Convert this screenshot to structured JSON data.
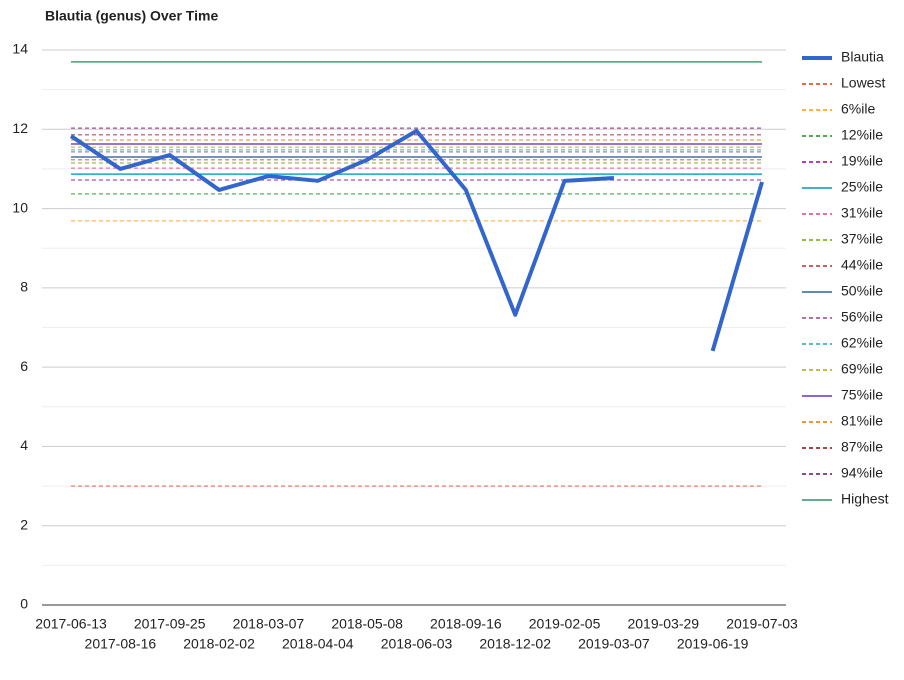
{
  "chart_data": {
    "type": "line",
    "title": "Blautia (genus) Over Time",
    "categories": [
      "2017-06-13",
      "2017-08-16",
      "2017-09-25",
      "2018-02-02",
      "2018-03-07",
      "2018-04-04",
      "2018-05-08",
      "2018-06-03",
      "2018-09-16",
      "2018-12-02",
      "2019-02-05",
      "2019-03-07",
      "2019-03-29",
      "2019-06-19",
      "2019-07-03"
    ],
    "series": [
      {
        "name": "Blautia",
        "color": "#3366cc",
        "values": [
          11.83,
          11.0,
          11.35,
          10.47,
          10.82,
          10.7,
          11.23,
          11.96,
          10.47,
          7.32,
          10.7,
          10.77,
          null,
          6.41,
          10.67
        ]
      }
    ],
    "reference_lines": [
      {
        "name": "Lowest",
        "color": "#dc3912",
        "value": 3.0,
        "dashed": true
      },
      {
        "name": "6%ile",
        "color": "#ff9900",
        "value": 9.69,
        "dashed": true
      },
      {
        "name": "12%ile",
        "color": "#109618",
        "value": 10.37,
        "dashed": true
      },
      {
        "name": "19%ile",
        "color": "#990099",
        "value": 10.72,
        "dashed": true
      },
      {
        "name": "25%ile",
        "color": "#0099c6",
        "value": 10.87,
        "dashed": false
      },
      {
        "name": "31%ile",
        "color": "#dd4477",
        "value": 11.02,
        "dashed": true
      },
      {
        "name": "37%ile",
        "color": "#66aa00",
        "value": 11.15,
        "dashed": true
      },
      {
        "name": "44%ile",
        "color": "#b82e2e",
        "value": 11.23,
        "dashed": true
      },
      {
        "name": "50%ile",
        "color": "#316395",
        "value": 11.3,
        "dashed": false
      },
      {
        "name": "56%ile",
        "color": "#994499",
        "value": 11.43,
        "dashed": true
      },
      {
        "name": "62%ile",
        "color": "#22aa99",
        "value": 11.48,
        "dashed": true
      },
      {
        "name": "69%ile",
        "color": "#aaaa11",
        "value": 11.55,
        "dashed": true
      },
      {
        "name": "75%ile",
        "color": "#6633cc",
        "value": 11.63,
        "dashed": false
      },
      {
        "name": "81%ile",
        "color": "#e67300",
        "value": 11.73,
        "dashed": true
      },
      {
        "name": "87%ile",
        "color": "#8b0707",
        "value": 11.86,
        "dashed": true
      },
      {
        "name": "94%ile",
        "color": "#651067",
        "value": 12.03,
        "dashed": true
      },
      {
        "name": "Highest",
        "color": "#329262",
        "value": 13.7,
        "dashed": false
      }
    ],
    "ylim": [
      0,
      14
    ],
    "yticks": [
      0,
      2,
      4,
      6,
      8,
      10,
      12,
      14
    ],
    "minor_yticks": [
      1,
      3,
      5,
      7,
      9,
      11,
      13
    ],
    "grid": true,
    "legend": "right"
  }
}
